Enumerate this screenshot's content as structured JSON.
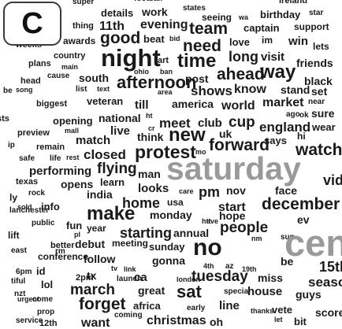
{
  "panel_label": "C",
  "colors": {
    "text": "#1a1a1a",
    "emphasis_gray": "#9a9a9a",
    "background": "#ffffff"
  },
  "words": [
    {
      "text": "super"
    },
    {
      "text": "details"
    },
    {
      "text": "work"
    },
    {
      "text": "states"
    },
    {
      "text": "seeing"
    },
    {
      "text": "wa"
    },
    {
      "text": "birthday"
    },
    {
      "text": "star"
    },
    {
      "text": "thing"
    },
    {
      "text": "11th"
    },
    {
      "text": "evening"
    },
    {
      "text": "team"
    },
    {
      "text": "captain"
    },
    {
      "text": "support"
    },
    {
      "text": "weeks"
    },
    {
      "text": "awards"
    },
    {
      "text": "good"
    },
    {
      "text": "beat"
    },
    {
      "text": "bid"
    },
    {
      "text": "need"
    },
    {
      "text": "love"
    },
    {
      "text": "im"
    },
    {
      "text": "win"
    },
    {
      "text": "lets"
    },
    {
      "text": "country"
    },
    {
      "text": "night"
    },
    {
      "text": "art"
    },
    {
      "text": "time"
    },
    {
      "text": "long"
    },
    {
      "text": "visit"
    },
    {
      "text": "plans"
    },
    {
      "text": "main"
    },
    {
      "text": "ban"
    },
    {
      "text": "friends"
    },
    {
      "text": "head"
    },
    {
      "text": "cause"
    },
    {
      "text": "south"
    },
    {
      "text": "ohio"
    },
    {
      "text": "post"
    },
    {
      "text": "ahead"
    },
    {
      "text": "way"
    },
    {
      "text": "black"
    },
    {
      "text": "song"
    },
    {
      "text": "list"
    },
    {
      "text": "text"
    },
    {
      "text": "afternoon"
    },
    {
      "text": "shows"
    },
    {
      "text": "know"
    },
    {
      "text": "stand"
    },
    {
      "text": "set"
    },
    {
      "text": "biggest"
    },
    {
      "text": "veteran"
    },
    {
      "text": "area"
    },
    {
      "text": "till"
    },
    {
      "text": "america"
    },
    {
      "text": "world"
    },
    {
      "text": "market"
    },
    {
      "text": "near"
    },
    {
      "text": "opening"
    },
    {
      "text": "national"
    },
    {
      "text": "ht"
    },
    {
      "text": "meet"
    },
    {
      "text": "club"
    },
    {
      "text": "cup"
    },
    {
      "text": "ago"
    },
    {
      "text": "ok"
    },
    {
      "text": "sure"
    },
    {
      "text": "preview"
    },
    {
      "text": "mall"
    },
    {
      "text": "live"
    },
    {
      "text": "cr"
    },
    {
      "text": "new"
    },
    {
      "text": "uk"
    },
    {
      "text": "england"
    },
    {
      "text": "wear"
    },
    {
      "text": "remain"
    },
    {
      "text": "match"
    },
    {
      "text": "think"
    },
    {
      "text": "forward"
    },
    {
      "text": "says"
    },
    {
      "text": "hi"
    },
    {
      "text": "watch"
    },
    {
      "text": "safe"
    },
    {
      "text": "life"
    },
    {
      "text": "rest"
    },
    {
      "text": "closed"
    },
    {
      "text": "protest"
    },
    {
      "text": "mo"
    },
    {
      "text": "performing"
    },
    {
      "text": "flying"
    },
    {
      "text": "man"
    },
    {
      "text": "saturday"
    },
    {
      "text": "texas"
    },
    {
      "text": "opens"
    },
    {
      "text": "learn"
    },
    {
      "text": "looks"
    },
    {
      "text": "care"
    },
    {
      "text": "pm"
    },
    {
      "text": "nov"
    },
    {
      "text": "face"
    },
    {
      "text": "rock"
    },
    {
      "text": "india"
    },
    {
      "text": "home"
    },
    {
      "text": "usa"
    },
    {
      "text": "start"
    },
    {
      "text": "december"
    },
    {
      "text": "sold"
    },
    {
      "text": "info"
    },
    {
      "text": "make"
    },
    {
      "text": "monday"
    },
    {
      "text": "ave"
    },
    {
      "text": "hope"
    },
    {
      "text": "ev"
    },
    {
      "text": "public"
    },
    {
      "text": "fun"
    },
    {
      "text": "htt"
    },
    {
      "text": "people"
    },
    {
      "text": "year"
    },
    {
      "text": "starting"
    },
    {
      "text": "annual"
    },
    {
      "text": "nm"
    },
    {
      "text": "sun"
    },
    {
      "text": "better"
    },
    {
      "text": "debut"
    },
    {
      "text": "meeting"
    },
    {
      "text": "sunday"
    },
    {
      "text": "no"
    },
    {
      "text": "centre"
    },
    {
      "text": "conference"
    },
    {
      "text": "follow"
    },
    {
      "text": "gonna"
    },
    {
      "text": "be"
    },
    {
      "text": "15th"
    },
    {
      "text": "6pm"
    },
    {
      "text": "id"
    },
    {
      "text": "tv"
    },
    {
      "text": "link"
    },
    {
      "text": "4th"
    },
    {
      "text": "az"
    },
    {
      "text": "19th"
    },
    {
      "text": "lol"
    },
    {
      "text": "2pm"
    },
    {
      "text": "tx"
    },
    {
      "text": "launch"
    },
    {
      "text": "ca"
    },
    {
      "text": "london"
    },
    {
      "text": "tuesday"
    },
    {
      "text": "miss"
    },
    {
      "text": "season"
    },
    {
      "text": "march"
    },
    {
      "text": "great"
    },
    {
      "text": "sat"
    },
    {
      "text": "special"
    },
    {
      "text": "house"
    },
    {
      "text": "guys"
    },
    {
      "text": "come"
    },
    {
      "text": "forget"
    },
    {
      "text": "africa"
    },
    {
      "text": "early"
    },
    {
      "text": "line"
    },
    {
      "text": "thanks"
    },
    {
      "text": "vete"
    },
    {
      "text": "score"
    },
    {
      "text": "prop"
    },
    {
      "text": "service"
    },
    {
      "text": "12th"
    },
    {
      "text": "want"
    },
    {
      "text": "coming"
    },
    {
      "text": "christmas"
    },
    {
      "text": "oh"
    },
    {
      "text": "let"
    },
    {
      "text": "bit"
    },
    {
      "text": "urgent"
    },
    {
      "text": "east"
    },
    {
      "text": "rm"
    },
    {
      "text": "nzt"
    },
    {
      "text": "tiful"
    },
    {
      "text": "sts"
    },
    {
      "text": "ip"
    },
    {
      "text": "be"
    },
    {
      "text": "ly"
    },
    {
      "text": "lanchester"
    },
    {
      "text": "lift"
    },
    {
      "text": "pl"
    },
    {
      "text": "video"
    },
    {
      "text": "football"
    },
    {
      "text": "ireland"
    }
  ]
}
